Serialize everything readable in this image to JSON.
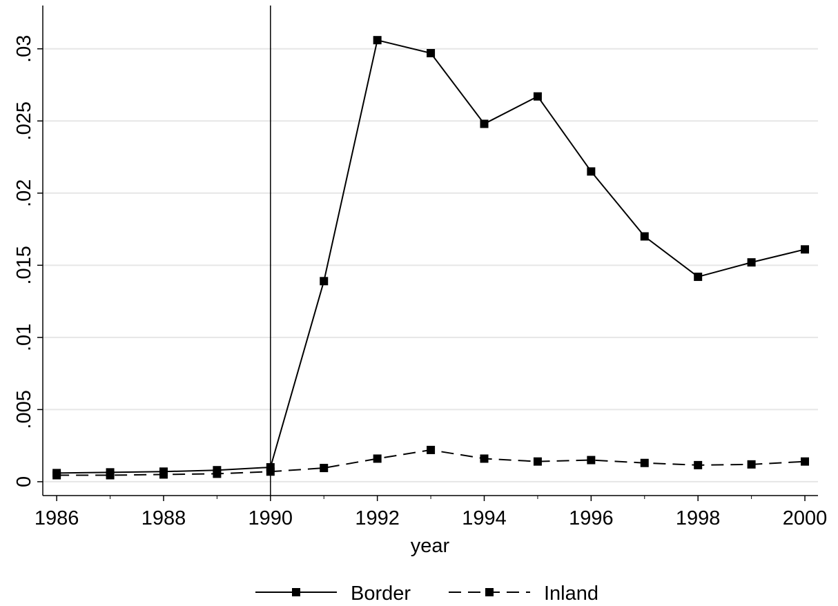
{
  "chart_data": {
    "type": "line",
    "x_label": "year",
    "x": [
      1986,
      1987,
      1988,
      1989,
      1990,
      1991,
      1992,
      1993,
      1994,
      1995,
      1996,
      1997,
      1998,
      1999,
      2000
    ],
    "series": [
      {
        "name": "Border",
        "color": "#000000",
        "dash": "solid",
        "values": [
          0.0006,
          0.00065,
          0.0007,
          0.0008,
          0.001,
          0.0139,
          0.0306,
          0.0297,
          0.0248,
          0.0267,
          0.0215,
          0.017,
          0.0142,
          0.0152,
          0.0161
        ]
      },
      {
        "name": "Inland",
        "color": "#000000",
        "dash": "dashed",
        "values": [
          0.00045,
          0.00045,
          0.0005,
          0.00055,
          0.0007,
          0.00095,
          0.0016,
          0.0022,
          0.0016,
          0.0014,
          0.0015,
          0.0013,
          0.00115,
          0.0012,
          0.0014
        ]
      }
    ],
    "xlim": [
      1985.74,
      2000.245
    ],
    "xticks": [
      1986,
      1988,
      1990,
      1992,
      1994,
      1996,
      1998,
      2000
    ],
    "ylim": [
      -0.00096,
      0.033
    ],
    "yticks": [
      0,
      {
        "value": 0.005,
        "label": ".005"
      },
      {
        "value": 0.01,
        "label": ".01"
      },
      {
        "value": 0.015,
        "label": ".015"
      },
      {
        "value": 0.02,
        "label": ".02"
      },
      {
        "value": 0.025,
        "label": ".025"
      },
      {
        "value": 0.03,
        "label": ".03"
      }
    ],
    "grid": true,
    "xline": 1990,
    "legend": "bottom"
  }
}
